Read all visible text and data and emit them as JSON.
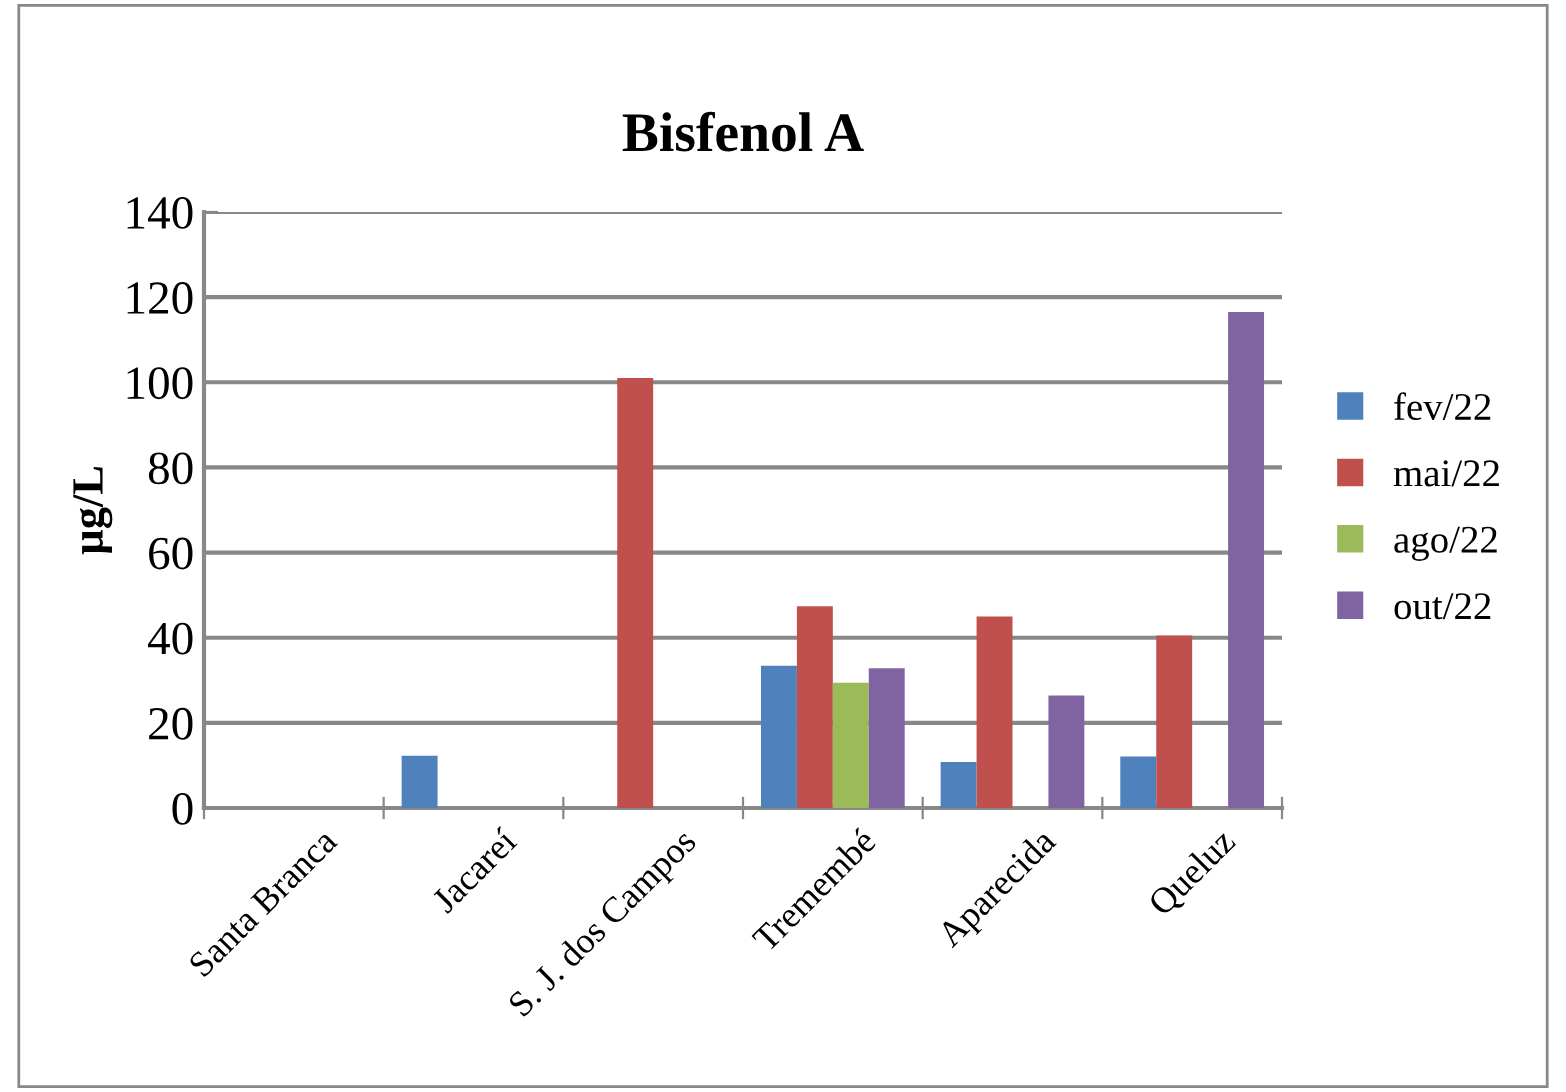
{
  "chart_data": {
    "type": "bar",
    "title": "Bisfenol A",
    "ylabel": "µg/L",
    "categories": [
      "Santa Branca",
      "Jacareí",
      "S. J. dos Campos",
      "Tremembé",
      "Aparecida",
      "Queluz"
    ],
    "series": [
      {
        "name": "fev/22",
        "color": "#4f81bd",
        "values": [
          null,
          12.3,
          null,
          33.4,
          10.8,
          12.1
        ]
      },
      {
        "name": "mai/22",
        "color": "#c0504d",
        "values": [
          null,
          null,
          101,
          47.4,
          45,
          40.5
        ]
      },
      {
        "name": "ago/22",
        "color": "#9bbb59",
        "values": [
          null,
          null,
          null,
          29.4,
          null,
          null
        ]
      },
      {
        "name": "out/22",
        "color": "#8064a2",
        "values": [
          null,
          null,
          null,
          32.8,
          26.4,
          116.5
        ]
      }
    ],
    "ylim": [
      0,
      140
    ],
    "yticks": [
      0,
      20,
      40,
      60,
      80,
      100,
      120,
      140
    ],
    "grid": "y",
    "legend": "right"
  }
}
